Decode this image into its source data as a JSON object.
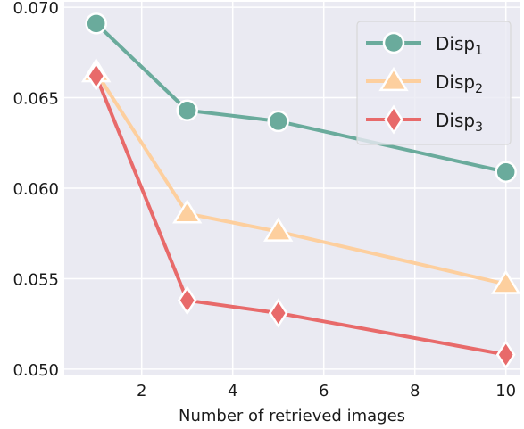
{
  "chart_data": {
    "type": "line",
    "xlabel": "Number of retrieved images",
    "ylabel": "",
    "x": [
      1,
      3,
      5,
      10
    ],
    "xlim": [
      0.3,
      10.3
    ],
    "ylim": [
      0.0497,
      0.0703
    ],
    "xticks": [
      2,
      4,
      6,
      8,
      10
    ],
    "yticks": [
      0.05,
      0.055,
      0.06,
      0.065,
      0.07
    ],
    "grid": true,
    "legend_position": "top-right",
    "series": [
      {
        "name_base": "Disp",
        "name_sub": "1",
        "values": [
          0.0691,
          0.0643,
          0.0637,
          0.0609
        ],
        "color": "#6aab9c",
        "marker": "circle"
      },
      {
        "name_base": "Disp",
        "name_sub": "2",
        "values": [
          0.0664,
          0.0586,
          0.0576,
          0.0547
        ],
        "color": "#fdcf9e",
        "marker": "triangle"
      },
      {
        "name_base": "Disp",
        "name_sub": "3",
        "values": [
          0.0662,
          0.0538,
          0.0531,
          0.0508
        ],
        "color": "#e86a6a",
        "marker": "diamond"
      }
    ],
    "colors": {
      "plot_background": "#eaeaf2",
      "grid": "#ffffff"
    }
  }
}
